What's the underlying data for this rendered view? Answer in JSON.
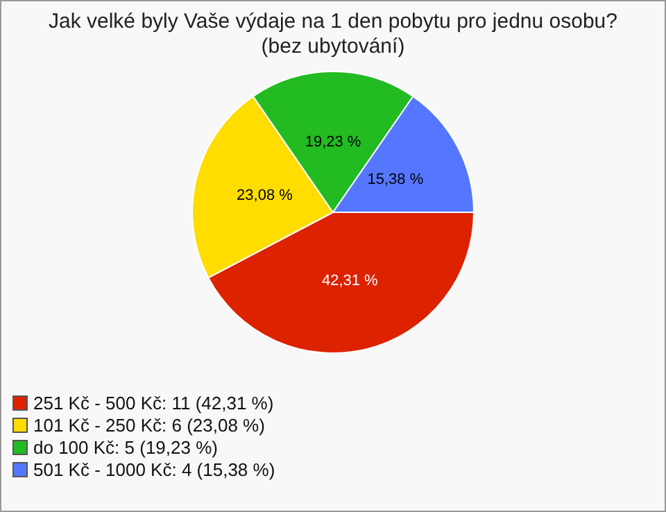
{
  "chart_data": {
    "type": "pie",
    "title": "Jak velké byly Vaše výdaje na 1 den pobytu pro jednu osobu? (bez ubytování)",
    "categories": [
      "251 Kč - 500 Kč: 11 (42,31 %)",
      "101 Kč - 250 Kč: 6 (23,08 %)",
      "do 100 Kč: 5 (19,23 %)",
      "501 Kč - 1000 Kč: 4 (15,38 %)"
    ],
    "values": [
      42.31,
      23.08,
      19.23,
      15.38
    ],
    "value_labels": [
      "42,31 %",
      "23,08 %",
      "19,23 %",
      "15,38 %"
    ],
    "colors": [
      "#dd2200",
      "#ffdd00",
      "#22bb22",
      "#5577ff"
    ],
    "legend": "bottom left"
  }
}
